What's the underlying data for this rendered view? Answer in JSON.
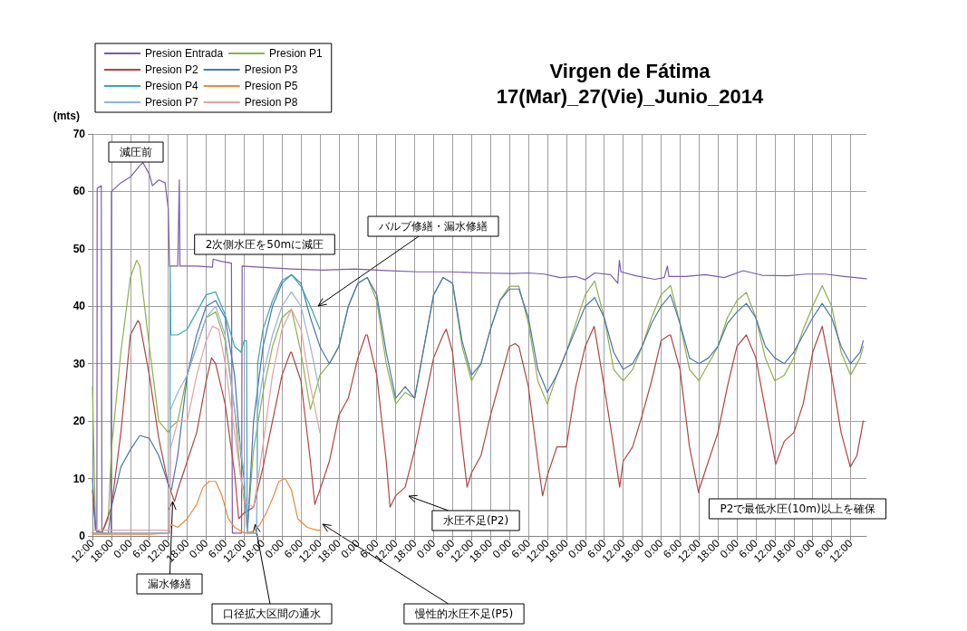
{
  "chart_data": {
    "type": "line",
    "title": "Virgen de Fátima",
    "subtitle": "17(Mar)_27(Vie)_Junio_2014",
    "ylabel": "(mts)",
    "xlim": [
      "2014-06-17T12:00",
      "2014-06-27T17:00"
    ],
    "ylim": [
      0,
      70
    ],
    "yticks": [
      0,
      10,
      20,
      30,
      40,
      50,
      60,
      70
    ],
    "xticks": [
      {
        "value": "2014-06-17T12:00",
        "label": "12:00"
      },
      {
        "value": "2014-06-17T18:00",
        "label": "18:00"
      },
      {
        "value": "2014-06-18T00:00",
        "label": "0:00"
      },
      {
        "value": "2014-06-18T06:00",
        "label": "6:00"
      },
      {
        "value": "2014-06-18T12:00",
        "label": "12:00"
      },
      {
        "value": "2014-06-18T18:00",
        "label": "18:00"
      },
      {
        "value": "2014-06-19T00:00",
        "label": "0:00"
      },
      {
        "value": "2014-06-19T06:00",
        "label": "6:00"
      },
      {
        "value": "2014-06-19T12:00",
        "label": "12:00"
      },
      {
        "value": "2014-06-19T18:00",
        "label": "18:00"
      },
      {
        "value": "2014-06-20T00:00",
        "label": "0:00"
      },
      {
        "value": "2014-06-20T06:00",
        "label": "6:00"
      },
      {
        "value": "2014-06-20T12:00",
        "label": "12:00"
      },
      {
        "value": "2014-06-20T18:00",
        "label": "18:00"
      },
      {
        "value": "2014-06-21T00:00",
        "label": "0:00"
      },
      {
        "value": "2014-06-21T06:00",
        "label": "6:00"
      },
      {
        "value": "2014-06-21T12:00",
        "label": "12:00"
      },
      {
        "value": "2014-06-21T18:00",
        "label": "18:00"
      },
      {
        "value": "2014-06-22T00:00",
        "label": "0:00"
      },
      {
        "value": "2014-06-22T06:00",
        "label": "6:00"
      },
      {
        "value": "2014-06-22T12:00",
        "label": "12:00"
      },
      {
        "value": "2014-06-22T18:00",
        "label": "18:00"
      },
      {
        "value": "2014-06-23T00:00",
        "label": "0:00"
      },
      {
        "value": "2014-06-23T06:00",
        "label": "6:00"
      },
      {
        "value": "2014-06-23T12:00",
        "label": "12:00"
      },
      {
        "value": "2014-06-23T18:00",
        "label": "18:00"
      },
      {
        "value": "2014-06-24T00:00",
        "label": "0:00"
      },
      {
        "value": "2014-06-24T06:00",
        "label": "6:00"
      },
      {
        "value": "2014-06-24T12:00",
        "label": "12:00"
      },
      {
        "value": "2014-06-24T18:00",
        "label": "18:00"
      },
      {
        "value": "2014-06-25T00:00",
        "label": "0:00"
      },
      {
        "value": "2014-06-25T06:00",
        "label": "6:00"
      },
      {
        "value": "2014-06-25T12:00",
        "label": "12:00"
      },
      {
        "value": "2014-06-25T18:00",
        "label": "18:00"
      },
      {
        "value": "2014-06-26T00:00",
        "label": "0:00"
      },
      {
        "value": "2014-06-26T06:00",
        "label": "6:00"
      },
      {
        "value": "2014-06-26T12:00",
        "label": "12:00"
      },
      {
        "value": "2014-06-26T18:00",
        "label": "18:00"
      },
      {
        "value": "2014-06-27T00:00",
        "label": "0:00"
      },
      {
        "value": "2014-06-27T06:00",
        "label": "6:00"
      },
      {
        "value": "2014-06-27T12:00",
        "label": "12:00"
      }
    ],
    "grid": true,
    "legend": "top left",
    "annotations": [
      "減圧前",
      "2次側水圧を50mに減圧",
      "バルブ修繕・漏水修繕",
      {
        "text": "漏水修繕",
        "x": "2014-06-18T13:24",
        "y": 6
      },
      {
        "text": "口径拡大区間の通水",
        "x": "2014-06-19T15:30",
        "y": 2
      },
      "慢性的水圧不足(P5)",
      "水圧不足(P2)",
      "P2で最低水圧(10m)以上を確保"
    ],
    "series": [
      {
        "name": "Presion Entrada",
        "color": "#7d5ba6",
        "x": [
          "2014-06-17T12:00",
          "2014-06-17T13:24",
          "2014-06-17T13:30",
          "2014-06-17T14:48",
          "2014-06-17T15:00",
          "2014-06-17T17:54",
          "2014-06-17T18:00",
          "2014-06-17T21:00",
          "2014-06-18T00:00",
          "2014-06-18T03:00",
          "2014-06-18T04:00",
          "2014-06-18T06:00",
          "2014-06-18T07:00",
          "2014-06-18T09:00",
          "2014-06-18T11:00",
          "2014-06-18T12:00",
          "2014-06-18T12:24",
          "2014-06-18T15:00",
          "2014-06-18T15:30",
          "2014-06-18T15:42",
          "2014-06-18T21:00",
          "2014-06-19T02:00",
          "2014-06-19T02:12",
          "2014-06-19T05:00",
          "2014-06-19T08:00",
          "2014-06-19T08:18",
          "2014-06-19T11:12",
          "2014-06-19T11:24",
          "2014-06-19T17:00",
          "2014-06-20T03:00",
          "2014-06-20T13:00",
          "2014-06-20T23:00",
          "2014-06-21T09:00",
          "2014-06-21T19:00",
          "2014-06-22T05:00",
          "2014-06-22T15:00",
          "2014-06-23T01:00",
          "2014-06-23T06:00",
          "2014-06-23T11:00",
          "2014-06-23T16:00",
          "2014-06-23T21:00",
          "2014-06-24T00:00",
          "2014-06-24T03:00",
          "2014-06-24T08:00",
          "2014-06-24T10:18",
          "2014-06-24T10:48",
          "2014-06-24T11:18",
          "2014-06-24T16:00",
          "2014-06-24T22:00",
          "2014-06-25T01:00",
          "2014-06-25T02:00",
          "2014-06-25T02:30",
          "2014-06-25T08:00",
          "2014-06-25T14:00",
          "2014-06-25T20:00",
          "2014-06-26T02:00",
          "2014-06-26T08:00",
          "2014-06-26T16:00",
          "2014-06-26T22:00",
          "2014-06-27T04:00",
          "2014-06-27T10:00",
          "2014-06-27T17:00"
        ],
        "values": [
          0.5,
          0.5,
          60.5,
          61,
          0.5,
          0.5,
          60,
          61.5,
          62.5,
          64.5,
          65,
          63,
          61,
          62,
          61.5,
          57,
          47,
          47,
          62,
          47,
          47,
          46.8,
          48.2,
          47.8,
          47.5,
          0.5,
          0.5,
          47,
          46.8,
          46.5,
          46.3,
          46.5,
          46.2,
          46,
          46,
          45.8,
          45.7,
          45.8,
          45.6,
          45,
          45.2,
          44.6,
          45.8,
          45.5,
          44,
          48,
          46,
          45.3,
          44.7,
          45,
          47,
          45.2,
          45.2,
          45.5,
          45,
          46.2,
          45.4,
          45.3,
          45.6,
          45.6,
          45.2,
          44.8
        ]
      },
      {
        "name": "Presion P1",
        "color": "#8db04b",
        "x": [
          "2014-06-17T12:00",
          "2014-06-17T13:00",
          "2014-06-17T15:00",
          "2014-06-17T17:00",
          "2014-06-17T18:00",
          "2014-06-17T21:00",
          "2014-06-18T00:00",
          "2014-06-18T02:00",
          "2014-06-18T03:00",
          "2014-06-18T06:00",
          "2014-06-18T09:00",
          "2014-06-18T12:00",
          "2014-06-18T13:00",
          "2014-06-18T15:00",
          "2014-06-18T18:00",
          "2014-06-18T21:00",
          "2014-06-19T00:00",
          "2014-06-19T03:00",
          "2014-06-19T06:00",
          "2014-06-19T09:00",
          "2014-06-19T11:00",
          "2014-06-19T12:00",
          "2014-06-19T13:00",
          "2014-06-19T14:00",
          "2014-06-19T15:00",
          "2014-06-19T18:00",
          "2014-06-19T21:00",
          "2014-06-20T00:00",
          "2014-06-20T03:00",
          "2014-06-20T06:00",
          "2014-06-20T09:00",
          "2014-06-20T12:00",
          "2014-06-20T15:00",
          "2014-06-20T18:00",
          "2014-06-20T21:00",
          "2014-06-21T00:00",
          "2014-06-21T03:00",
          "2014-06-21T06:00",
          "2014-06-21T09:00",
          "2014-06-21T12:00",
          "2014-06-21T15:00",
          "2014-06-21T18:00",
          "2014-06-21T21:00",
          "2014-06-22T00:00",
          "2014-06-22T03:00",
          "2014-06-22T06:00",
          "2014-06-22T09:00",
          "2014-06-22T12:00",
          "2014-06-22T15:00",
          "2014-06-22T18:00",
          "2014-06-22T21:00",
          "2014-06-23T00:00",
          "2014-06-23T03:00",
          "2014-06-23T06:00",
          "2014-06-23T09:00",
          "2014-06-23T12:00",
          "2014-06-23T15:00",
          "2014-06-23T18:00",
          "2014-06-23T21:00",
          "2014-06-24T00:00",
          "2014-06-24T03:00",
          "2014-06-24T06:00",
          "2014-06-24T09:00",
          "2014-06-24T12:00",
          "2014-06-24T15:00",
          "2014-06-24T18:00",
          "2014-06-24T21:00",
          "2014-06-25T00:00",
          "2014-06-25T03:00",
          "2014-06-25T06:00",
          "2014-06-25T09:00",
          "2014-06-25T12:00",
          "2014-06-25T15:00",
          "2014-06-25T18:00",
          "2014-06-25T21:00",
          "2014-06-26T00:00",
          "2014-06-26T03:00",
          "2014-06-26T06:00",
          "2014-06-26T09:00",
          "2014-06-26T12:00",
          "2014-06-26T15:00",
          "2014-06-26T18:00",
          "2014-06-26T21:00",
          "2014-06-27T00:00",
          "2014-06-27T03:00",
          "2014-06-27T06:00",
          "2014-06-27T09:00",
          "2014-06-27T12:00",
          "2014-06-27T15:00",
          "2014-06-27T16:00"
        ],
        "values": [
          26,
          1,
          0.5,
          3,
          15,
          32,
          45,
          48,
          47,
          33,
          20,
          18,
          19,
          20,
          28,
          33,
          38,
          39,
          34,
          22,
          10,
          8,
          0.5,
          8,
          15,
          25,
          33,
          38,
          39.5,
          32,
          22,
          28,
          30,
          33,
          40,
          44,
          45,
          41,
          30,
          23,
          25,
          24,
          33,
          42,
          45,
          44,
          33,
          27,
          30,
          36,
          41,
          43.5,
          43.5,
          37,
          27,
          23,
          28,
          32,
          37,
          42,
          44.4,
          38,
          29,
          27,
          29,
          33,
          38,
          42,
          43.6,
          37,
          29,
          27,
          30,
          33,
          38,
          41,
          42.4,
          38,
          31,
          27,
          28,
          31,
          36,
          40,
          43.6,
          40,
          32,
          28,
          31,
          33
        ]
      },
      {
        "name": "Presion P2",
        "color": "#b04545",
        "x": [
          "2014-06-17T12:00",
          "2014-06-17T13:00",
          "2014-06-17T15:00",
          "2014-06-17T18:00",
          "2014-06-17T21:00",
          "2014-06-18T00:00",
          "2014-06-18T02:24",
          "2014-06-18T03:00",
          "2014-06-18T06:00",
          "2014-06-18T09:00",
          "2014-06-18T12:00",
          "2014-06-18T14:00",
          "2014-06-18T15:00",
          "2014-06-18T18:00",
          "2014-06-18T21:00",
          "2014-06-19T00:00",
          "2014-06-19T01:42",
          "2014-06-19T03:00",
          "2014-06-19T06:00",
          "2014-06-19T09:00",
          "2014-06-19T10:18",
          "2014-06-19T12:00",
          "2014-06-19T15:00",
          "2014-06-19T18:00",
          "2014-06-19T21:00",
          "2014-06-20T00:00",
          "2014-06-20T02:42",
          "2014-06-20T03:00",
          "2014-06-20T06:00",
          "2014-06-20T09:00",
          "2014-06-20T10:24",
          "2014-06-20T12:00",
          "2014-06-20T15:00",
          "2014-06-20T18:00",
          "2014-06-20T21:00",
          "2014-06-21T00:00",
          "2014-06-21T02:30",
          "2014-06-21T03:00",
          "2014-06-21T06:00",
          "2014-06-21T09:00",
          "2014-06-21T10:12",
          "2014-06-21T12:00",
          "2014-06-21T15:00",
          "2014-06-21T18:00",
          "2014-06-21T21:00",
          "2014-06-22T00:00",
          "2014-06-22T03:00",
          "2014-06-22T04:00",
          "2014-06-22T06:00",
          "2014-06-22T09:00",
          "2014-06-22T10:36",
          "2014-06-22T12:00",
          "2014-06-22T15:00",
          "2014-06-22T18:00",
          "2014-06-22T21:00",
          "2014-06-23T00:00",
          "2014-06-23T01:48",
          "2014-06-23T03:00",
          "2014-06-23T06:00",
          "2014-06-23T09:00",
          "2014-06-23T10:30",
          "2014-06-23T12:00",
          "2014-06-23T15:00",
          "2014-06-23T18:00",
          "2014-06-23T21:00",
          "2014-06-24T00:00",
          "2014-06-24T02:48",
          "2014-06-24T03:00",
          "2014-06-24T06:00",
          "2014-06-24T09:00",
          "2014-06-24T10:54",
          "2014-06-24T12:00",
          "2014-06-24T15:00",
          "2014-06-24T18:00",
          "2014-06-24T21:00",
          "2014-06-25T00:00",
          "2014-06-25T02:36",
          "2014-06-25T03:00",
          "2014-06-25T06:00",
          "2014-06-25T09:00",
          "2014-06-25T11:54",
          "2014-06-25T12:00",
          "2014-06-25T15:00",
          "2014-06-25T18:00",
          "2014-06-25T21:00",
          "2014-06-26T00:00",
          "2014-06-26T03:00",
          "2014-06-26T06:00",
          "2014-06-26T09:00",
          "2014-06-26T12:18",
          "2014-06-26T15:00",
          "2014-06-26T18:00",
          "2014-06-26T21:00",
          "2014-06-27T00:00",
          "2014-06-27T03:00",
          "2014-06-27T06:00",
          "2014-06-27T09:00",
          "2014-06-27T11:54",
          "2014-06-27T14:00",
          "2014-06-27T16:00"
        ],
        "values": [
          8,
          1,
          0.5,
          5,
          18,
          35,
          37.5,
          37,
          28,
          17,
          9,
          6,
          8,
          13,
          18,
          27,
          31,
          30,
          23,
          11,
          3,
          4,
          5,
          12,
          20,
          28,
          32,
          32,
          27,
          13,
          5.5,
          8,
          13,
          21,
          24,
          31,
          35,
          35,
          28,
          13,
          5,
          7,
          8.5,
          15,
          23,
          31,
          35,
          36,
          32,
          16,
          8.5,
          11,
          14,
          21,
          27,
          33,
          33.5,
          33,
          26,
          13,
          7,
          10.5,
          15.5,
          15.5,
          26,
          33,
          36.5,
          36,
          26,
          15.5,
          8.5,
          13,
          15.5,
          21,
          27,
          34,
          35,
          35,
          29,
          15.5,
          7.5,
          8,
          13,
          18,
          26,
          33,
          35,
          31,
          22,
          12.5,
          16.5,
          18,
          23,
          32,
          36.5,
          28,
          18,
          12,
          14,
          20
        ]
      },
      {
        "name": "Presion P3",
        "color": "#4a76ab",
        "x": [
          "2014-06-17T12:00",
          "2014-06-17T13:00",
          "2014-06-17T15:00",
          "2014-06-17T17:00",
          "2014-06-17T18:00",
          "2014-06-17T21:00",
          "2014-06-18T00:00",
          "2014-06-18T03:00",
          "2014-06-18T06:00",
          "2014-06-18T09:00",
          "2014-06-18T12:00",
          "2014-06-18T13:00",
          "2014-06-18T15:00",
          "2014-06-18T18:00",
          "2014-06-18T21:00",
          "2014-06-19T00:00",
          "2014-06-19T03:00",
          "2014-06-19T06:00",
          "2014-06-19T09:00",
          "2014-06-19T11:00",
          "2014-06-19T12:00",
          "2014-06-19T13:00",
          "2014-06-19T14:00",
          "2014-06-19T15:00",
          "2014-06-19T18:00",
          "2014-06-19T21:00",
          "2014-06-20T00:00",
          "2014-06-20T03:00",
          "2014-06-20T06:00",
          "2014-06-20T09:00",
          "2014-06-20T12:00",
          "2014-06-20T15:00",
          "2014-06-20T18:00",
          "2014-06-20T21:00",
          "2014-06-21T00:00",
          "2014-06-21T03:00",
          "2014-06-21T06:00",
          "2014-06-21T09:00",
          "2014-06-21T12:00",
          "2014-06-21T15:00",
          "2014-06-21T18:00",
          "2014-06-21T21:00",
          "2014-06-22T00:00",
          "2014-06-22T03:00",
          "2014-06-22T06:00",
          "2014-06-22T09:00",
          "2014-06-22T12:00",
          "2014-06-22T15:00",
          "2014-06-22T18:00",
          "2014-06-22T21:00",
          "2014-06-23T00:00",
          "2014-06-23T03:00",
          "2014-06-23T06:00",
          "2014-06-23T09:00",
          "2014-06-23T12:00",
          "2014-06-23T15:00",
          "2014-06-23T18:00",
          "2014-06-23T21:00",
          "2014-06-24T00:00",
          "2014-06-24T03:00",
          "2014-06-24T06:00",
          "2014-06-24T09:00",
          "2014-06-24T12:00",
          "2014-06-24T15:00",
          "2014-06-24T18:00",
          "2014-06-24T21:00",
          "2014-06-25T00:00",
          "2014-06-25T03:00",
          "2014-06-25T06:00",
          "2014-06-25T09:00",
          "2014-06-25T12:00",
          "2014-06-25T15:00",
          "2014-06-25T18:00",
          "2014-06-25T21:00",
          "2014-06-26T00:00",
          "2014-06-26T03:00",
          "2014-06-26T06:00",
          "2014-06-26T09:00",
          "2014-06-26T12:00",
          "2014-06-26T15:00",
          "2014-06-26T18:00",
          "2014-06-26T21:00",
          "2014-06-27T00:00",
          "2014-06-27T03:00",
          "2014-06-27T06:00",
          "2014-06-27T09:00",
          "2014-06-27T12:00",
          "2014-06-27T15:00",
          "2014-06-27T16:00"
        ],
        "values": [
          10,
          1,
          0.5,
          0.5,
          5,
          12,
          15,
          17.5,
          17,
          14,
          9,
          8,
          14,
          28,
          35,
          40,
          41,
          38,
          28,
          14,
          10,
          0.5,
          10,
          20,
          33,
          40,
          44,
          45.5,
          44,
          38,
          33,
          30,
          33,
          40,
          44,
          45,
          42,
          32,
          24,
          26,
          24,
          33,
          42,
          45,
          44,
          34,
          28,
          30,
          36,
          41,
          43,
          43,
          38,
          29,
          25,
          28,
          32,
          36,
          40,
          41.5,
          38,
          32,
          29,
          30,
          33,
          37,
          40,
          42,
          37,
          31,
          30,
          31,
          33,
          37,
          39,
          40.5,
          38,
          33,
          31,
          30,
          32,
          35,
          38,
          40.5,
          38,
          33,
          30,
          32,
          34
        ]
      },
      {
        "name": "Presion P4",
        "color": "#3ba5b5",
        "x": [
          "2014-06-17T12:00",
          "2014-06-18T12:30",
          "2014-06-18T12:36",
          "2014-06-18T12:48",
          "2014-06-18T15:00",
          "2014-06-18T18:00",
          "2014-06-18T21:00",
          "2014-06-19T00:00",
          "2014-06-19T03:00",
          "2014-06-19T06:00",
          "2014-06-19T09:00",
          "2014-06-19T11:00",
          "2014-06-19T12:00",
          "2014-06-19T12:48",
          "2014-06-19T13:00",
          "2014-06-19T16:00",
          "2014-06-19T16:18",
          "2014-06-19T18:00",
          "2014-06-19T21:00",
          "2014-06-20T00:00",
          "2014-06-20T03:00",
          "2014-06-20T06:00",
          "2014-06-20T09:00",
          "2014-06-20T12:00"
        ],
        "values": [
          0.5,
          0.5,
          47,
          35,
          35,
          36,
          39,
          42,
          42.5,
          38.5,
          33,
          32,
          34,
          34,
          0.5,
          0.5,
          30,
          36,
          41,
          44.5,
          45.5,
          43.5,
          40,
          36
        ]
      },
      {
        "name": "Presion P5",
        "color": "#e88a3a",
        "x": [
          "2014-06-17T12:00",
          "2014-06-18T06:00",
          "2014-06-18T12:00",
          "2014-06-18T13:00",
          "2014-06-18T15:00",
          "2014-06-18T18:00",
          "2014-06-18T21:00",
          "2014-06-18T23:00",
          "2014-06-19T01:00",
          "2014-06-19T03:00",
          "2014-06-19T05:00",
          "2014-06-19T07:00",
          "2014-06-19T09:00",
          "2014-06-19T12:00",
          "2014-06-19T15:00",
          "2014-06-19T17:00",
          "2014-06-19T19:00",
          "2014-06-19T21:00",
          "2014-06-19T23:00",
          "2014-06-20T01:00",
          "2014-06-20T03:00",
          "2014-06-20T05:00",
          "2014-06-20T08:00",
          "2014-06-20T11:00",
          "2014-06-20T12:12"
        ],
        "values": [
          0.3,
          0.3,
          0.5,
          2,
          1.5,
          3,
          5.5,
          8.5,
          9.5,
          9.5,
          7,
          3,
          1.5,
          0.5,
          0.8,
          2,
          4,
          6.5,
          9.5,
          10,
          8,
          3,
          1.5,
          1,
          1
        ]
      },
      {
        "name": "Presion P7",
        "color": "#95b3d7",
        "x": [
          "2014-06-17T12:00",
          "2014-06-18T12:30",
          "2014-06-18T12:42",
          "2014-06-18T15:00",
          "2014-06-18T18:00",
          "2014-06-18T21:00",
          "2014-06-19T00:00",
          "2014-06-19T03:00",
          "2014-06-19T06:00",
          "2014-06-19T09:00",
          "2014-06-19T12:00",
          "2014-06-19T13:00",
          "2014-06-19T16:00",
          "2014-06-19T16:18",
          "2014-06-19T18:00",
          "2014-06-19T21:00",
          "2014-06-20T00:00",
          "2014-06-20T03:00",
          "2014-06-20T06:00",
          "2014-06-20T09:00",
          "2014-06-20T12:00"
        ],
        "values": [
          0.5,
          0.5,
          22,
          25,
          28,
          33,
          38,
          40,
          35,
          22,
          11,
          0.5,
          0.5,
          22,
          28,
          35,
          40,
          42.5,
          40,
          33,
          25
        ]
      },
      {
        "name": "Presion P8",
        "color": "#e6a0a0",
        "x": [
          "2014-06-17T12:00",
          "2014-06-18T12:24",
          "2014-06-18T12:36",
          "2014-06-18T15:00",
          "2014-06-18T18:00",
          "2014-06-18T21:00",
          "2014-06-19T00:00",
          "2014-06-19T02:00",
          "2014-06-19T04:00",
          "2014-06-19T06:00",
          "2014-06-19T09:00",
          "2014-06-19T12:00",
          "2014-06-19T15:00",
          "2014-06-19T17:00",
          "2014-06-19T19:00",
          "2014-06-19T21:00",
          "2014-06-20T00:00",
          "2014-06-20T03:00",
          "2014-06-20T06:00",
          "2014-06-20T09:00",
          "2014-06-20T12:00"
        ],
        "values": [
          1,
          1,
          15,
          20,
          20,
          28,
          34,
          36.5,
          36,
          30,
          18,
          6,
          5,
          12,
          20,
          28,
          36,
          39.5,
          36,
          26,
          18
        ]
      }
    ]
  }
}
